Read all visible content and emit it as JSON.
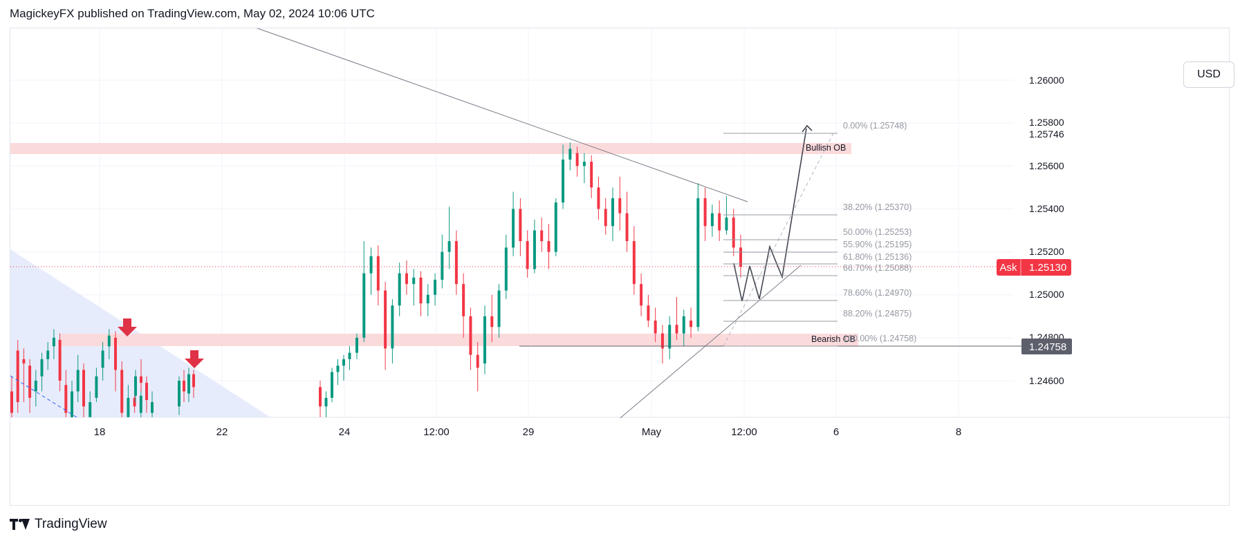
{
  "header": {
    "published_line": "MagickeyFX published on TradingView.com, May 02, 2024 10:06 UTC"
  },
  "currency_button": "USD",
  "footer": {
    "brand": "TradingView"
  },
  "colors": {
    "bull": "#089981",
    "bear": "#f23645",
    "ob_zone": "#fbdadc",
    "triangle_zone": "#e3e9fb",
    "ask_badge": "#f23645",
    "price_badge": "#5d606b",
    "fib_line": "#9598a1",
    "trendline": "#787b86",
    "arrow_red": "#e03246"
  },
  "chart_data": {
    "type": "candlestick",
    "symbol_note": "",
    "x_ticks": [
      "18",
      "22",
      "24",
      "12:00",
      "29",
      "May",
      "12:00",
      "6",
      "8"
    ],
    "y_ticks": [
      "1.26000",
      "1.25800",
      "1.25746",
      "1.25600",
      "1.25400",
      "1.25200",
      "1.25000",
      "1.24800",
      "1.24600"
    ],
    "y_range": [
      1.2425,
      1.264
    ],
    "current_price": {
      "label": "Ask",
      "value": "1.25130"
    },
    "marked_price": {
      "value": "1.24758"
    },
    "zones": [
      {
        "label": "Bullish OB",
        "top": 1.25715,
        "bottom": 1.25665
      },
      {
        "label": "Bearish OB",
        "top": 1.2481,
        "bottom": 1.24758
      }
    ],
    "fibonacci": [
      {
        "label": "0.00% (1.25748)",
        "price": 1.25748
      },
      {
        "label": "38.20% (1.25370)",
        "price": 1.2537
      },
      {
        "label": "50.00% (1.25253)",
        "price": 1.25253
      },
      {
        "label": "55.90% (1.25195)",
        "price": 1.25195
      },
      {
        "label": "61.80% (1.25136)",
        "price": 1.25136
      },
      {
        "label": "66.70% (1.25088)",
        "price": 1.25088
      },
      {
        "label": "78.60% (1.24970)",
        "price": 1.2497
      },
      {
        "label": "88.20% (1.24875)",
        "price": 1.24875
      },
      {
        "label": "100.00% (1.24758)",
        "price": 1.24758
      }
    ],
    "candles": [
      {
        "o": 1.2455,
        "h": 1.2462,
        "l": 1.244,
        "c": 1.2445
      },
      {
        "o": 1.2474,
        "h": 1.2479,
        "l": 1.2445,
        "c": 1.245
      },
      {
        "o": 1.247,
        "h": 1.2475,
        "l": 1.245,
        "c": 1.2468
      },
      {
        "o": 1.2467,
        "h": 1.247,
        "l": 1.2445,
        "c": 1.2452
      },
      {
        "o": 1.2455,
        "h": 1.2465,
        "l": 1.2448,
        "c": 1.246
      },
      {
        "o": 1.2462,
        "h": 1.2473,
        "l": 1.2455,
        "c": 1.247
      },
      {
        "o": 1.247,
        "h": 1.2478,
        "l": 1.2465,
        "c": 1.2474
      },
      {
        "o": 1.2476,
        "h": 1.2484,
        "l": 1.247,
        "c": 1.248
      },
      {
        "o": 1.2479,
        "h": 1.2482,
        "l": 1.2455,
        "c": 1.246
      },
      {
        "o": 1.2458,
        "h": 1.2465,
        "l": 1.244,
        "c": 1.2445
      },
      {
        "o": 1.2442,
        "h": 1.246,
        "l": 1.2438,
        "c": 1.2455
      },
      {
        "o": 1.2455,
        "h": 1.2472,
        "l": 1.245,
        "c": 1.2465
      },
      {
        "o": 1.2465,
        "h": 1.2468,
        "l": 1.244,
        "c": 1.2448
      },
      {
        "o": 1.2443,
        "h": 1.2455,
        "l": 1.244,
        "c": 1.245
      },
      {
        "o": 1.2452,
        "h": 1.2466,
        "l": 1.245,
        "c": 1.2462
      },
      {
        "o": 1.2466,
        "h": 1.2478,
        "l": 1.246,
        "c": 1.2474
      },
      {
        "o": 1.2476,
        "h": 1.2484,
        "l": 1.247,
        "c": 1.2481
      },
      {
        "o": 1.248,
        "h": 1.2483,
        "l": 1.2455,
        "c": 1.2465
      },
      {
        "o": 1.2465,
        "h": 1.2469,
        "l": 1.244,
        "c": 1.2445
      },
      {
        "o": 1.2443,
        "h": 1.2458,
        "l": 1.244,
        "c": 1.2452
      },
      {
        "o": 1.2452,
        "h": 1.246,
        "l": 1.2445,
        "c": 1.2448
      },
      {
        "o": 1.2445,
        "h": 1.2456,
        "l": 1.244,
        "c": 1.2453
      },
      {
        "o": 1.2453,
        "h": 1.2465,
        "l": 1.245,
        "c": 1.2462
      },
      {
        "o": 1.2462,
        "h": 1.247,
        "l": 1.2455,
        "c": 1.2459
      },
      {
        "o": 1.2459,
        "h": 1.2462,
        "l": 1.2445,
        "c": 1.2451
      },
      {
        "o": 1.2445,
        "h": 1.2455,
        "l": 1.244,
        "c": 1.245
      },
      {
        "o": 1.2448,
        "h": 1.2462,
        "l": 1.2444,
        "c": 1.246
      },
      {
        "o": 1.246,
        "h": 1.2465,
        "l": 1.245,
        "c": 1.2455
      },
      {
        "o": 1.2454,
        "h": 1.2466,
        "l": 1.245,
        "c": 1.2463
      },
      {
        "o": 1.2463,
        "h": 1.2465,
        "l": 1.2452,
        "c": 1.2457
      },
      {
        "o": 1.2457,
        "h": 1.246,
        "l": 1.2443,
        "c": 1.2448
      },
      {
        "o": 1.2448,
        "h": 1.2455,
        "l": 1.244,
        "c": 1.2452
      },
      {
        "o": 1.2452,
        "h": 1.2466,
        "l": 1.245,
        "c": 1.2464
      },
      {
        "o": 1.2464,
        "h": 1.247,
        "l": 1.2458,
        "c": 1.2467
      },
      {
        "o": 1.2467,
        "h": 1.2472,
        "l": 1.246,
        "c": 1.247
      },
      {
        "o": 1.247,
        "h": 1.2476,
        "l": 1.2465,
        "c": 1.2473
      },
      {
        "o": 1.2473,
        "h": 1.2482,
        "l": 1.247,
        "c": 1.248
      },
      {
        "o": 1.248,
        "h": 1.2525,
        "l": 1.2478,
        "c": 1.251
      },
      {
        "o": 1.251,
        "h": 1.2522,
        "l": 1.25,
        "c": 1.2518
      },
      {
        "o": 1.2518,
        "h": 1.2523,
        "l": 1.2495,
        "c": 1.2502
      },
      {
        "o": 1.2502,
        "h": 1.2506,
        "l": 1.2465,
        "c": 1.2475
      },
      {
        "o": 1.2475,
        "h": 1.2498,
        "l": 1.2468,
        "c": 1.2495
      },
      {
        "o": 1.2495,
        "h": 1.2515,
        "l": 1.249,
        "c": 1.251
      },
      {
        "o": 1.251,
        "h": 1.2516,
        "l": 1.25,
        "c": 1.2505
      },
      {
        "o": 1.2505,
        "h": 1.2512,
        "l": 1.2495,
        "c": 1.2508
      },
      {
        "o": 1.2508,
        "h": 1.2511,
        "l": 1.249,
        "c": 1.2496
      },
      {
        "o": 1.2496,
        "h": 1.2505,
        "l": 1.249,
        "c": 1.25
      },
      {
        "o": 1.25,
        "h": 1.251,
        "l": 1.2495,
        "c": 1.2507
      },
      {
        "o": 1.2507,
        "h": 1.2528,
        "l": 1.2503,
        "c": 1.252
      },
      {
        "o": 1.252,
        "h": 1.2541,
        "l": 1.2512,
        "c": 1.2525
      },
      {
        "o": 1.2525,
        "h": 1.253,
        "l": 1.25,
        "c": 1.2505
      },
      {
        "o": 1.2505,
        "h": 1.251,
        "l": 1.248,
        "c": 1.249
      },
      {
        "o": 1.249,
        "h": 1.2494,
        "l": 1.2465,
        "c": 1.2472
      },
      {
        "o": 1.2472,
        "h": 1.2478,
        "l": 1.2455,
        "c": 1.2466
      },
      {
        "o": 1.2468,
        "h": 1.2495,
        "l": 1.2463,
        "c": 1.249
      },
      {
        "o": 1.249,
        "h": 1.25,
        "l": 1.2478,
        "c": 1.2485
      },
      {
        "o": 1.2485,
        "h": 1.2505,
        "l": 1.248,
        "c": 1.2502
      },
      {
        "o": 1.2502,
        "h": 1.2528,
        "l": 1.2498,
        "c": 1.2522
      },
      {
        "o": 1.2522,
        "h": 1.2548,
        "l": 1.2518,
        "c": 1.254
      },
      {
        "o": 1.254,
        "h": 1.2545,
        "l": 1.2518,
        "c": 1.2525
      },
      {
        "o": 1.2525,
        "h": 1.253,
        "l": 1.2508,
        "c": 1.2512
      },
      {
        "o": 1.2512,
        "h": 1.2535,
        "l": 1.251,
        "c": 1.253
      },
      {
        "o": 1.253,
        "h": 1.2536,
        "l": 1.252,
        "c": 1.2525
      },
      {
        "o": 1.2525,
        "h": 1.2533,
        "l": 1.2512,
        "c": 1.252
      },
      {
        "o": 1.252,
        "h": 1.2545,
        "l": 1.2518,
        "c": 1.2543
      },
      {
        "o": 1.2543,
        "h": 1.257,
        "l": 1.254,
        "c": 1.2563
      },
      {
        "o": 1.2563,
        "h": 1.2571,
        "l": 1.2558,
        "c": 1.2568
      },
      {
        "o": 1.2566,
        "h": 1.2569,
        "l": 1.2555,
        "c": 1.256
      },
      {
        "o": 1.256,
        "h": 1.2566,
        "l": 1.2552,
        "c": 1.2562
      },
      {
        "o": 1.2562,
        "h": 1.2565,
        "l": 1.2545,
        "c": 1.255
      },
      {
        "o": 1.255,
        "h": 1.2555,
        "l": 1.2535,
        "c": 1.254
      },
      {
        "o": 1.254,
        "h": 1.2545,
        "l": 1.2528,
        "c": 1.2532
      },
      {
        "o": 1.2532,
        "h": 1.255,
        "l": 1.2525,
        "c": 1.2545
      },
      {
        "o": 1.2545,
        "h": 1.2555,
        "l": 1.253,
        "c": 1.2538
      },
      {
        "o": 1.2538,
        "h": 1.2548,
        "l": 1.252,
        "c": 1.2525
      },
      {
        "o": 1.2525,
        "h": 1.2532,
        "l": 1.25,
        "c": 1.2505
      },
      {
        "o": 1.2505,
        "h": 1.251,
        "l": 1.249,
        "c": 1.2495
      },
      {
        "o": 1.2495,
        "h": 1.25,
        "l": 1.2485,
        "c": 1.2488
      },
      {
        "o": 1.2488,
        "h": 1.2494,
        "l": 1.2478,
        "c": 1.2482
      },
      {
        "o": 1.2482,
        "h": 1.2486,
        "l": 1.2468,
        "c": 1.2475
      },
      {
        "o": 1.2475,
        "h": 1.249,
        "l": 1.247,
        "c": 1.2486
      },
      {
        "o": 1.2486,
        "h": 1.2499,
        "l": 1.2479,
        "c": 1.2482
      },
      {
        "o": 1.2482,
        "h": 1.2493,
        "l": 1.2476,
        "c": 1.249
      },
      {
        "o": 1.2488,
        "h": 1.2494,
        "l": 1.248,
        "c": 1.2485
      },
      {
        "o": 1.2485,
        "h": 1.2552,
        "l": 1.2483,
        "c": 1.2545
      },
      {
        "o": 1.2545,
        "h": 1.255,
        "l": 1.2525,
        "c": 1.2532
      },
      {
        "o": 1.2532,
        "h": 1.2542,
        "l": 1.2527,
        "c": 1.2538
      },
      {
        "o": 1.2538,
        "h": 1.2544,
        "l": 1.2525,
        "c": 1.253
      },
      {
        "o": 1.253,
        "h": 1.2546,
        "l": 1.2528,
        "c": 1.2536
      },
      {
        "o": 1.2536,
        "h": 1.254,
        "l": 1.2518,
        "c": 1.2522
      },
      {
        "o": 1.2522,
        "h": 1.2528,
        "l": 1.2508,
        "c": 1.2513
      }
    ]
  }
}
